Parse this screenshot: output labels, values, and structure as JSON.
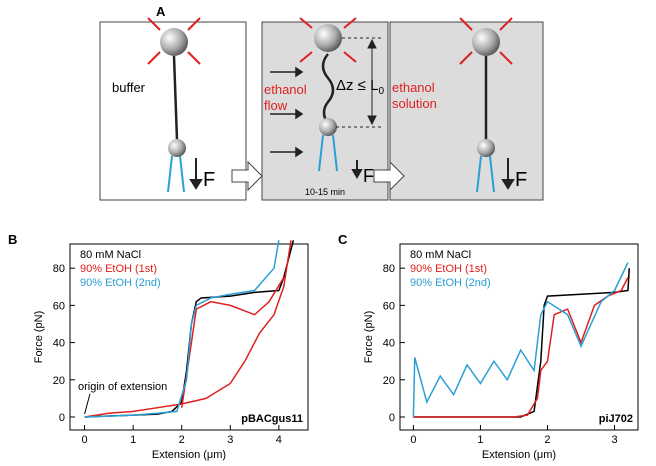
{
  "diagram": {
    "panel": "A",
    "buffer": "buffer",
    "flow_1": "ethanol",
    "flow_2": "flow",
    "delta_label": "Δz ≤ L",
    "delta_subscript": "0",
    "force_1": "F",
    "force_2": "F",
    "force_3": "F",
    "time": "10-15 min",
    "solution_1": "ethanol",
    "solution_2": "solution"
  },
  "chart_data": [
    {
      "type": "line",
      "panel": "B",
      "xlabel": "Extension (μm)",
      "ylabel": "Force (pN)",
      "label": "pBACgus11",
      "annotation": "origin of extension",
      "xlim": [
        -0.3,
        4.6
      ],
      "xticks": [
        0,
        1,
        2,
        3,
        4
      ],
      "ylim": [
        -7,
        93
      ],
      "yticks": [
        0,
        20,
        40,
        60,
        80
      ],
      "legend": "upper left",
      "series": [
        {
          "name": "80 mM NaCl",
          "color": "#000000",
          "x": [
            0,
            0.5,
            1,
            1.5,
            1.8,
            2.0,
            2.1,
            2.2,
            2.3,
            2.4,
            3,
            3.5,
            4.0,
            4.1,
            4.2,
            4.3
          ],
          "values": [
            0,
            0.5,
            1,
            1.5,
            3,
            8,
            25,
            50,
            62,
            64,
            65,
            67,
            68,
            75,
            85,
            95
          ]
        },
        {
          "name": "90% EtOH (1st)",
          "color": "#e02020",
          "x": [
            0,
            0.5,
            1,
            1.5,
            2,
            2.5,
            3,
            3.3,
            3.6,
            3.9,
            4.1,
            4.25,
            4.25,
            2.0,
            2.2,
            2.3,
            2.6,
            3.0,
            3.3,
            3.5,
            3.8,
            4.1
          ],
          "values": [
            0,
            2,
            3,
            5,
            7,
            10,
            18,
            30,
            45,
            55,
            70,
            95,
            null,
            5,
            40,
            58,
            62,
            60,
            57,
            55,
            62,
            75
          ]
        },
        {
          "name": "90% EtOH (2nd)",
          "color": "#2a9fd6",
          "x": [
            0,
            1,
            1.5,
            1.9,
            2.1,
            2.2,
            2.3,
            2.6,
            3,
            3.5,
            3.9,
            4.0
          ],
          "values": [
            0,
            1,
            2,
            3,
            20,
            50,
            60,
            64,
            66,
            68,
            80,
            95
          ]
        }
      ]
    },
    {
      "type": "line",
      "panel": "C",
      "xlabel": "Extension (μm)",
      "ylabel": "Force (pN)",
      "label": "piJ702",
      "xlim": [
        -0.2,
        3.35
      ],
      "xticks": [
        0,
        1,
        2,
        3
      ],
      "ylim": [
        -7,
        93
      ],
      "yticks": [
        0,
        20,
        40,
        60,
        80
      ],
      "legend": "upper left",
      "series": [
        {
          "name": "80 mM NaCl",
          "color": "#000000",
          "x": [
            0,
            1,
            1.6,
            1.8,
            1.9,
            1.95,
            2.0,
            2.5,
            3.0,
            3.2,
            3.22
          ],
          "values": [
            0,
            0,
            0,
            3,
            30,
            60,
            65,
            66,
            67,
            68,
            80
          ]
        },
        {
          "name": "90% EtOH (1st)",
          "color": "#e02020",
          "x": [
            0,
            1,
            1.5,
            1.7,
            1.85,
            1.9,
            2.0,
            2.1,
            2.3,
            2.5,
            2.7,
            2.9,
            3.1,
            3.2
          ],
          "values": [
            0,
            0,
            0,
            1,
            10,
            25,
            30,
            55,
            58,
            40,
            60,
            65,
            68,
            75
          ]
        },
        {
          "name": "90% EtOH (2nd)",
          "color": "#2a9fd6",
          "x": [
            0,
            0.02,
            0.2,
            0.4,
            0.6,
            0.8,
            1.0,
            1.2,
            1.4,
            1.6,
            1.8,
            1.9,
            2.0,
            2.3,
            2.5,
            2.8,
            3.0,
            3.2
          ],
          "values": [
            0,
            32,
            8,
            22,
            12,
            28,
            18,
            30,
            20,
            36,
            25,
            55,
            62,
            55,
            38,
            62,
            68,
            83
          ]
        }
      ]
    }
  ]
}
